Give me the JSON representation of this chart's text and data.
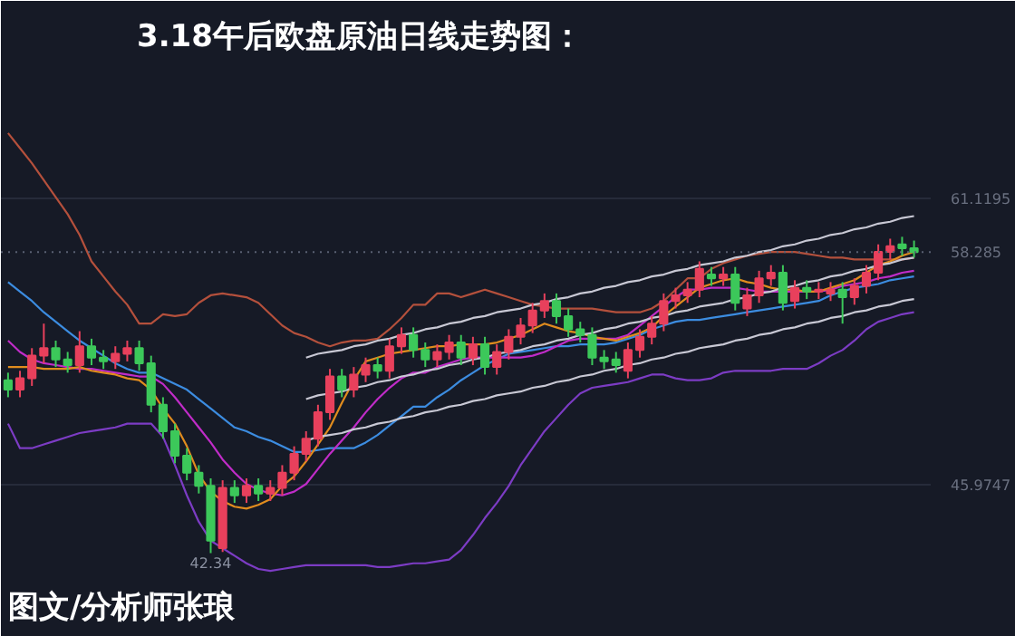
{
  "chart_data": {
    "type": "candlestick",
    "title": "3.18午后欧盘原油日线走势图：",
    "annotations": [
      "图文/分析师张琅",
      "42.34"
    ],
    "categories": [
      null,
      null,
      null,
      null,
      null,
      null,
      null,
      null,
      null,
      null,
      null,
      null,
      null,
      null,
      null,
      null,
      null,
      null,
      null,
      null,
      null,
      null,
      null,
      null,
      null,
      null,
      null,
      null,
      null,
      null,
      null,
      null,
      null,
      null,
      null,
      null,
      null,
      null,
      null,
      null,
      null,
      null,
      null,
      null,
      null,
      null,
      null,
      null,
      null,
      null,
      null,
      null,
      null,
      null,
      null,
      null,
      null,
      null,
      null,
      null,
      null,
      null,
      null,
      null,
      null,
      null,
      null,
      null,
      null,
      null,
      null,
      null,
      null,
      null,
      null,
      null,
      null
    ],
    "ohlc": [
      [
        51.5,
        51.9,
        50.6,
        51.0
      ],
      [
        51.0,
        52.0,
        50.6,
        51.6
      ],
      [
        51.6,
        53.2,
        51.2,
        52.8
      ],
      [
        52.8,
        54.5,
        52.4,
        53.2
      ],
      [
        53.2,
        53.6,
        52.2,
        52.6
      ],
      [
        52.6,
        53.0,
        51.9,
        52.3
      ],
      [
        52.3,
        54.1,
        51.9,
        53.3
      ],
      [
        53.3,
        53.7,
        52.3,
        52.7
      ],
      [
        52.7,
        53.1,
        52.1,
        52.5
      ],
      [
        52.5,
        53.3,
        52.1,
        52.9
      ],
      [
        52.9,
        53.6,
        52.5,
        53.2
      ],
      [
        53.2,
        53.6,
        52.0,
        52.4
      ],
      [
        52.4,
        52.8,
        49.8,
        50.2
      ],
      [
        50.2,
        50.6,
        48.4,
        48.8
      ],
      [
        48.8,
        49.2,
        47.1,
        47.5
      ],
      [
        47.5,
        47.9,
        46.2,
        46.6
      ],
      [
        46.6,
        47.0,
        45.5,
        45.9
      ],
      [
        45.9,
        46.3,
        42.34,
        43.0
      ],
      [
        42.6,
        46.2,
        42.4,
        45.8
      ],
      [
        45.8,
        46.2,
        45.0,
        45.4
      ],
      [
        45.4,
        46.3,
        45.0,
        45.9
      ],
      [
        45.9,
        46.3,
        45.1,
        45.5
      ],
      [
        45.5,
        46.2,
        45.1,
        45.8
      ],
      [
        45.8,
        47.0,
        45.4,
        46.6
      ],
      [
        46.6,
        48.0,
        46.2,
        47.6
      ],
      [
        47.6,
        48.8,
        47.2,
        48.4
      ],
      [
        48.4,
        50.2,
        48.0,
        49.8
      ],
      [
        49.8,
        52.1,
        49.4,
        51.7
      ],
      [
        51.7,
        52.1,
        50.6,
        51.0
      ],
      [
        51.0,
        52.2,
        50.6,
        51.8
      ],
      [
        51.8,
        52.7,
        51.4,
        52.3
      ],
      [
        52.3,
        52.7,
        51.6,
        52.0
      ],
      [
        52.0,
        53.7,
        51.6,
        53.3
      ],
      [
        53.3,
        54.3,
        52.9,
        53.9
      ],
      [
        53.9,
        54.3,
        52.7,
        53.1
      ],
      [
        53.1,
        53.5,
        52.2,
        52.6
      ],
      [
        52.6,
        53.4,
        52.2,
        53.0
      ],
      [
        53.0,
        53.9,
        52.6,
        53.5
      ],
      [
        53.5,
        53.9,
        52.3,
        52.7
      ],
      [
        52.7,
        53.8,
        52.3,
        53.4
      ],
      [
        53.4,
        53.8,
        51.8,
        52.2
      ],
      [
        52.2,
        53.4,
        51.8,
        53.0
      ],
      [
        53.0,
        54.2,
        52.6,
        53.8
      ],
      [
        53.8,
        54.8,
        53.4,
        54.4
      ],
      [
        54.4,
        55.6,
        54.0,
        55.2
      ],
      [
        55.2,
        56.1,
        54.8,
        55.7
      ],
      [
        55.7,
        56.1,
        54.5,
        54.9
      ],
      [
        54.9,
        55.3,
        53.8,
        54.2
      ],
      [
        54.2,
        54.6,
        53.5,
        53.9
      ],
      [
        53.9,
        54.3,
        52.3,
        52.7
      ],
      [
        52.7,
        53.1,
        52.1,
        52.5
      ],
      [
        52.6,
        53.0,
        51.9,
        52.3
      ],
      [
        52.0,
        53.5,
        51.6,
        53.1
      ],
      [
        53.1,
        54.2,
        52.7,
        53.8
      ],
      [
        53.8,
        54.9,
        53.4,
        54.5
      ],
      [
        54.5,
        56.1,
        54.1,
        55.7
      ],
      [
        55.7,
        56.4,
        55.3,
        56.0
      ],
      [
        56.0,
        56.7,
        55.6,
        56.3
      ],
      [
        56.3,
        57.8,
        55.9,
        57.4
      ],
      [
        57.1,
        57.5,
        56.5,
        56.9
      ],
      [
        56.9,
        57.5,
        56.5,
        57.1
      ],
      [
        57.1,
        57.5,
        55.2,
        55.6
      ],
      [
        55.3,
        56.4,
        54.9,
        56.0
      ],
      [
        56.0,
        57.3,
        55.6,
        56.9
      ],
      [
        56.9,
        57.6,
        56.5,
        57.2
      ],
      [
        57.2,
        57.6,
        55.2,
        55.6
      ],
      [
        55.7,
        56.8,
        55.3,
        56.4
      ],
      [
        56.4,
        56.8,
        55.8,
        56.2
      ],
      [
        56.2,
        56.7,
        55.8,
        56.3
      ],
      [
        56.1,
        56.7,
        55.7,
        56.3
      ],
      [
        56.3,
        56.7,
        54.5,
        55.9
      ],
      [
        55.9,
        56.9,
        55.5,
        56.5
      ],
      [
        56.5,
        57.6,
        56.1,
        57.2
      ],
      [
        57.2,
        58.7,
        56.8,
        58.3
      ],
      [
        58.3,
        59.0,
        57.9,
        58.6
      ],
      [
        58.7,
        59.1,
        58.1,
        58.5
      ],
      [
        58.5,
        58.9,
        58.0,
        58.285
      ]
    ],
    "colors": [
      "#3cc85a",
      "#e8405c",
      "#e8405c",
      "#e8405c",
      "#3cc85a",
      "#3cc85a",
      "#e8405c",
      "#3cc85a",
      "#3cc85a",
      "#e8405c",
      "#e8405c",
      "#3cc85a",
      "#3cc85a",
      "#3cc85a",
      "#3cc85a",
      "#3cc85a",
      "#3cc85a",
      "#3cc85a",
      "#e8405c",
      "#3cc85a",
      "#e8405c",
      "#3cc85a",
      "#e8405c",
      "#e8405c",
      "#e8405c",
      "#e8405c",
      "#e8405c",
      "#e8405c",
      "#3cc85a",
      "#e8405c",
      "#e8405c",
      "#3cc85a",
      "#e8405c",
      "#e8405c",
      "#3cc85a",
      "#3cc85a",
      "#e8405c",
      "#e8405c",
      "#3cc85a",
      "#e8405c",
      "#3cc85a",
      "#e8405c",
      "#e8405c",
      "#e8405c",
      "#e8405c",
      "#e8405c",
      "#3cc85a",
      "#3cc85a",
      "#3cc85a",
      "#3cc85a",
      "#3cc85a",
      "#3cc85a",
      "#e8405c",
      "#e8405c",
      "#e8405c",
      "#e8405c",
      "#e8405c",
      "#e8405c",
      "#e8405c",
      "#3cc85a",
      "#e8405c",
      "#3cc85a",
      "#e8405c",
      "#e8405c",
      "#e8405c",
      "#3cc85a",
      "#e8405c",
      "#3cc85a",
      "#e8405c",
      "#e8405c",
      "#3cc85a",
      "#e8405c",
      "#e8405c",
      "#e8405c",
      "#e8405c",
      "#3cc85a",
      "#3cc85a"
    ],
    "series": [
      {
        "type": "line",
        "color": "#b4503c",
        "values": [
          64.6,
          63.8,
          63.0,
          62.1,
          61.2,
          60.3,
          59.2,
          57.8,
          57.0,
          56.2,
          55.5,
          54.5,
          54.5,
          55.0,
          54.9,
          55.0,
          55.6,
          56.0,
          56.1,
          56.0,
          55.9,
          55.6,
          55.0,
          54.4,
          54.0,
          53.8,
          53.5,
          53.3,
          53.5,
          53.6,
          53.6,
          53.7,
          54.2,
          54.8,
          55.5,
          55.5,
          56.1,
          56.1,
          55.9,
          56.1,
          56.3,
          56.1,
          55.9,
          55.7,
          55.5,
          55.4,
          55.3,
          55.3,
          55.3,
          55.3,
          55.2,
          55.1,
          55.1,
          55.1,
          55.3,
          55.7,
          56.3,
          56.9,
          56.9,
          57.4,
          57.7,
          57.9,
          58.1,
          58.2,
          58.3,
          58.3,
          58.3,
          58.2,
          58.1,
          58.0,
          58.0,
          57.9,
          57.9,
          57.9,
          57.9,
          57.9,
          58.0
        ]
      },
      {
        "type": "line",
        "color": "#7c3cc4",
        "values": [
          49.2,
          47.9,
          47.9,
          48.1,
          48.3,
          48.5,
          48.7,
          48.8,
          48.9,
          49.0,
          49.2,
          49.2,
          49.2,
          48.5,
          47.0,
          45.4,
          44.0,
          43.0,
          42.6,
          42.2,
          41.8,
          41.5,
          41.4,
          41.5,
          41.6,
          41.7,
          41.7,
          41.7,
          41.7,
          41.7,
          41.7,
          41.6,
          41.6,
          41.7,
          41.8,
          41.8,
          41.9,
          42.0,
          42.5,
          43.3,
          44.2,
          45.0,
          45.9,
          47.0,
          47.9,
          48.8,
          49.5,
          50.2,
          50.8,
          51.1,
          51.2,
          51.3,
          51.4,
          51.6,
          51.8,
          51.8,
          51.6,
          51.5,
          51.5,
          51.6,
          51.9,
          52.0,
          52.0,
          52.0,
          52.0,
          52.1,
          52.1,
          52.1,
          52.4,
          52.8,
          53.1,
          53.6,
          54.2,
          54.6,
          54.8,
          55.0,
          55.1
        ]
      },
      {
        "type": "line",
        "color": "#3c8ce0",
        "values": [
          56.7,
          56.2,
          55.7,
          55.1,
          54.6,
          54.1,
          53.6,
          53.2,
          52.8,
          52.4,
          52.1,
          51.9,
          51.9,
          51.6,
          51.3,
          51.0,
          50.5,
          50.0,
          49.5,
          49.0,
          48.8,
          48.5,
          48.3,
          48.0,
          47.7,
          47.7,
          47.8,
          47.9,
          47.9,
          47.9,
          48.2,
          48.6,
          49.1,
          49.6,
          50.1,
          50.1,
          50.6,
          51.0,
          51.5,
          51.9,
          52.3,
          52.6,
          52.9,
          53.0,
          53.1,
          53.2,
          53.3,
          53.3,
          53.4,
          53.4,
          53.4,
          53.5,
          53.7,
          53.9,
          54.2,
          54.4,
          54.6,
          54.7,
          54.7,
          54.8,
          54.9,
          55.0,
          55.1,
          55.2,
          55.3,
          55.4,
          55.5,
          55.6,
          55.7,
          56.0,
          56.2,
          56.4,
          56.5,
          56.6,
          56.8,
          56.9,
          57.0
        ]
      },
      {
        "type": "line",
        "color": "#c02cc8",
        "values": [
          53.6,
          53.0,
          52.6,
          52.4,
          52.3,
          52.2,
          52.1,
          52.1,
          52.0,
          51.9,
          51.8,
          51.7,
          51.7,
          51.3,
          50.6,
          49.8,
          49.0,
          48.2,
          47.3,
          46.6,
          46.0,
          45.7,
          45.5,
          45.4,
          45.6,
          46.0,
          46.8,
          47.6,
          48.3,
          49.0,
          49.8,
          50.5,
          51.1,
          51.6,
          51.9,
          51.9,
          52.2,
          52.4,
          52.6,
          52.7,
          52.7,
          52.7,
          52.7,
          52.7,
          52.8,
          53.0,
          53.3,
          53.6,
          53.7,
          53.7,
          53.7,
          53.7,
          53.9,
          54.4,
          54.9,
          55.4,
          55.9,
          56.3,
          56.3,
          56.4,
          56.4,
          56.4,
          56.3,
          56.2,
          56.2,
          56.2,
          56.2,
          56.2,
          56.2,
          56.3,
          56.5,
          56.6,
          56.7,
          56.9,
          57.0,
          57.2,
          57.3
        ]
      },
      {
        "type": "line",
        "color": "#e08c1e",
        "values": [
          52.2,
          52.2,
          52.2,
          52.1,
          52.1,
          52.1,
          52.2,
          52.0,
          51.9,
          51.8,
          51.6,
          51.5,
          51.0,
          50.0,
          49.2,
          48.0,
          46.5,
          45.6,
          45.1,
          44.8,
          44.7,
          44.9,
          45.2,
          45.9,
          46.4,
          47.2,
          48.1,
          49.0,
          50.3,
          51.5,
          52.5,
          52.7,
          52.9,
          53.0,
          53.1,
          53.2,
          53.3,
          53.3,
          53.4,
          53.4,
          53.4,
          53.5,
          53.7,
          53.9,
          54.2,
          54.5,
          54.3,
          54.1,
          54.0,
          53.8,
          53.7,
          53.6,
          53.8,
          54.0,
          54.3,
          54.9,
          55.4,
          55.9,
          56.4,
          56.6,
          56.8,
          56.9,
          56.7,
          56.6,
          56.4,
          56.3,
          56.3,
          56.2,
          56.2,
          56.4,
          56.6,
          56.8,
          57.2,
          57.6,
          57.8,
          58.1,
          58.3
        ]
      },
      {
        "type": "line",
        "color": "#c8c8d4",
        "values": [
          null,
          null,
          null,
          null,
          null,
          null,
          null,
          null,
          null,
          null,
          null,
          null,
          null,
          null,
          null,
          null,
          null,
          null,
          null,
          null,
          null,
          null,
          null,
          null,
          null,
          52.7,
          52.9,
          53.0,
          53.1,
          53.3,
          53.4,
          53.6,
          53.7,
          53.9,
          54.0,
          54.2,
          54.3,
          54.5,
          54.6,
          54.8,
          54.9,
          55.1,
          55.2,
          55.3,
          55.5,
          55.6,
          55.8,
          55.9,
          56.1,
          56.2,
          56.4,
          56.5,
          56.7,
          56.8,
          57.0,
          57.1,
          57.3,
          57.4,
          57.6,
          57.7,
          57.8,
          58.0,
          58.1,
          58.3,
          58.4,
          58.6,
          58.7,
          58.9,
          59.0,
          59.2,
          59.3,
          59.5,
          59.6,
          59.8,
          59.9,
          60.1,
          60.2
        ]
      },
      {
        "type": "line",
        "color": "#c8c8d4",
        "values": [
          null,
          null,
          null,
          null,
          null,
          null,
          null,
          null,
          null,
          null,
          null,
          null,
          null,
          null,
          null,
          null,
          null,
          null,
          null,
          null,
          null,
          null,
          null,
          null,
          null,
          50.5,
          50.7,
          50.8,
          50.9,
          51.1,
          51.2,
          51.4,
          51.5,
          51.7,
          51.8,
          52.0,
          52.1,
          52.3,
          52.4,
          52.6,
          52.7,
          52.9,
          53.0,
          53.1,
          53.3,
          53.4,
          53.6,
          53.7,
          53.9,
          54.0,
          54.2,
          54.3,
          54.5,
          54.6,
          54.8,
          54.9,
          55.1,
          55.2,
          55.4,
          55.5,
          55.6,
          55.8,
          55.9,
          56.1,
          56.2,
          56.4,
          56.5,
          56.7,
          56.8,
          57.0,
          57.1,
          57.3,
          57.4,
          57.6,
          57.7,
          57.9,
          58.0
        ]
      },
      {
        "type": "line",
        "color": "#c8c8d4",
        "values": [
          null,
          null,
          null,
          null,
          null,
          null,
          null,
          null,
          null,
          null,
          null,
          null,
          null,
          null,
          null,
          null,
          null,
          null,
          null,
          null,
          null,
          null,
          null,
          null,
          null,
          48.3,
          48.5,
          48.6,
          48.7,
          48.9,
          49.0,
          49.2,
          49.3,
          49.5,
          49.6,
          49.8,
          49.9,
          50.1,
          50.2,
          50.4,
          50.5,
          50.7,
          50.8,
          50.9,
          51.1,
          51.2,
          51.4,
          51.5,
          51.7,
          51.8,
          52.0,
          52.1,
          52.3,
          52.4,
          52.6,
          52.7,
          52.9,
          53.0,
          53.2,
          53.3,
          53.4,
          53.6,
          53.7,
          53.9,
          54.0,
          54.2,
          54.3,
          54.5,
          54.6,
          54.8,
          54.9,
          55.1,
          55.2,
          55.4,
          55.5,
          55.7,
          55.8
        ]
      }
    ],
    "ylim": [
      37.9,
      71.6
    ],
    "yticks": [
      61.1195,
      45.9747
    ],
    "grid": true,
    "ref_lines": [
      {
        "axis": "y",
        "value": 58.285,
        "label": "58.285"
      }
    ]
  }
}
